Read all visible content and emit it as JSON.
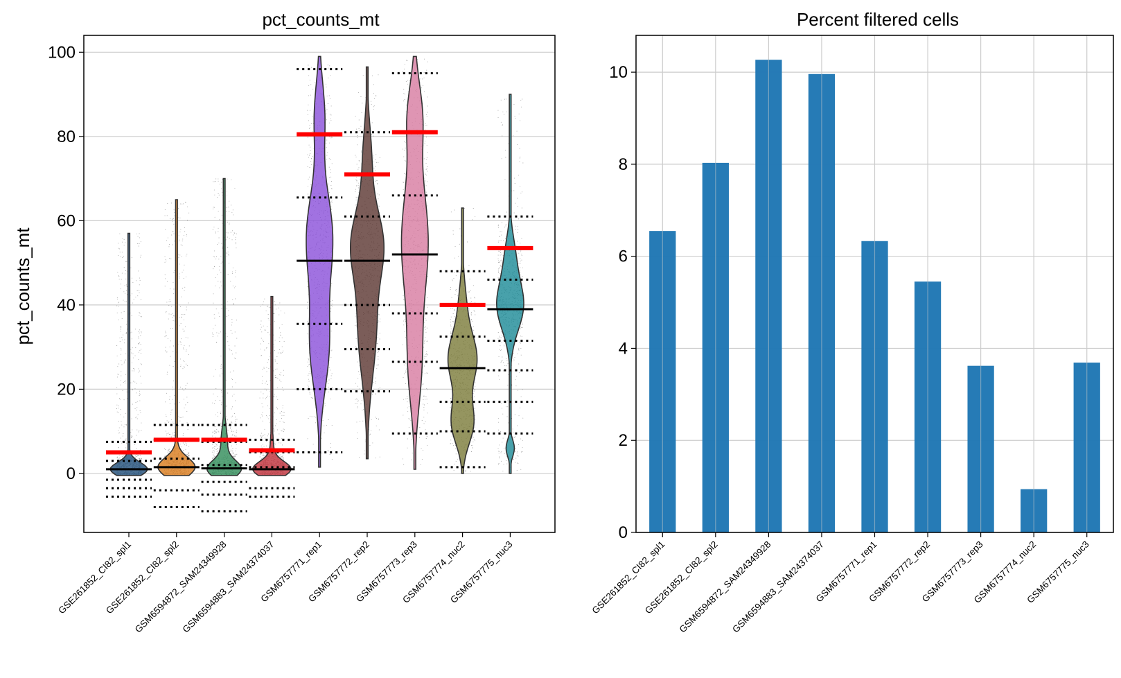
{
  "chart_data": [
    {
      "type": "violin",
      "title": "pct_counts_mt",
      "xlabel": "",
      "ylabel": "pct_counts_mt",
      "ylim": [
        -14,
        104
      ],
      "yticks": [
        0,
        20,
        40,
        60,
        80,
        100
      ],
      "grid": true,
      "categories": [
        "GSE261852_CI82_spl1",
        "GSE261852_CI82_spl2",
        "GSM6594872_SAM24349928",
        "GSM6594883_SAM24374037",
        "GSM6757771_rep1",
        "GSM6757772_rep2",
        "GSM6757773_rep3",
        "GSM6757774_nuc2",
        "GSM6757775_nuc3"
      ],
      "colors": [
        "#1f4e79",
        "#d97b1a",
        "#2e8b57",
        "#c0303a",
        "#8a4fd9",
        "#5a3530",
        "#d77aa0",
        "#7a7a38",
        "#1a8a96"
      ],
      "median": [
        1,
        1.5,
        1.2,
        1,
        50.5,
        50.5,
        52,
        25,
        39
      ],
      "upper_threshold": [
        5,
        8,
        8,
        5.5,
        80.5,
        71,
        81,
        40,
        53.5
      ],
      "dotted_levels": [
        [
          7.5,
          3,
          -1.5,
          -3.5,
          -5.5
        ],
        [
          11.5,
          8,
          3.5,
          -4,
          -8
        ],
        [
          11.5,
          7.5,
          2,
          -2,
          -5,
          -9
        ],
        [
          8,
          5,
          1.5,
          -3.5,
          -5.5
        ],
        [
          96,
          65.5,
          35.5,
          20,
          5
        ],
        [
          81,
          61,
          40,
          29.5,
          19.5
        ],
        [
          95,
          66,
          38,
          26.5,
          9.5
        ],
        [
          48,
          32.5,
          17,
          10,
          1.5
        ],
        [
          61,
          46,
          31.5,
          24.5,
          17,
          9.5
        ]
      ],
      "range": [
        [
          -0.5,
          57
        ],
        [
          -0.5,
          65
        ],
        [
          -0.5,
          70
        ],
        [
          -0.5,
          42
        ],
        [
          1.5,
          99
        ],
        [
          3.5,
          96.5
        ],
        [
          1,
          99
        ],
        [
          0,
          63
        ],
        [
          0,
          90
        ]
      ]
    },
    {
      "type": "bar",
      "title": "Percent filtered cells",
      "xlabel": "",
      "ylabel": "",
      "ylim": [
        0,
        10.8
      ],
      "yticks": [
        0,
        2,
        4,
        6,
        8,
        10
      ],
      "grid": true,
      "color": "#1f77b4",
      "categories": [
        "GSE261852_CI82_spl1",
        "GSE261852_CI82_spl2",
        "GSM6594872_SAM24349928",
        "GSM6594883_SAM24374037",
        "GSM6757771_rep1",
        "GSM6757772_rep2",
        "GSM6757773_rep3",
        "GSM6757774_nuc2",
        "GSM6757775_nuc3"
      ],
      "values": [
        6.55,
        8.03,
        10.27,
        9.96,
        6.33,
        5.45,
        3.62,
        0.94,
        3.69
      ]
    }
  ]
}
